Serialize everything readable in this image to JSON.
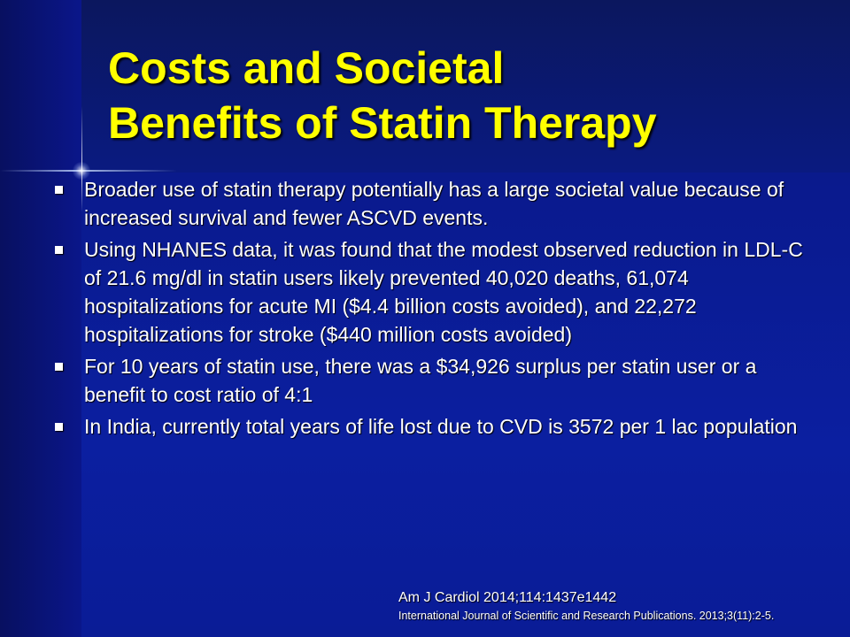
{
  "slide": {
    "title_lines": [
      "Costs and Societal",
      "Benefits of Statin Therapy"
    ],
    "bullets": [
      "Broader use of statin therapy potentially has a large societal value because of increased survival and fewer ASCVD events.",
      "Using NHANES data, it was found that the modest observed reduction in LDL-C of 21.6 mg/dl in statin users likely prevented 40,020 deaths, 61,074 hospitalizations for acute MI ($4.4 billion costs avoided), and 22,272 hospitalizations for stroke ($440 million costs avoided)",
      "For 10 years of statin use, there was a $34,926 surplus per statin user or a benefit to cost ratio of 4:1",
      "In India, currently total years of life lost due to CVD is 3572 per 1 lac population"
    ],
    "citations": [
      "Am J Cardiol 2014;114:1437e1442",
      "International Journal of Scientific and Research Publications. 2013;3(11):2-5."
    ]
  },
  "colors": {
    "background": "#0b1fa0",
    "title": "#ffff00",
    "body_text": "#ffffff"
  }
}
